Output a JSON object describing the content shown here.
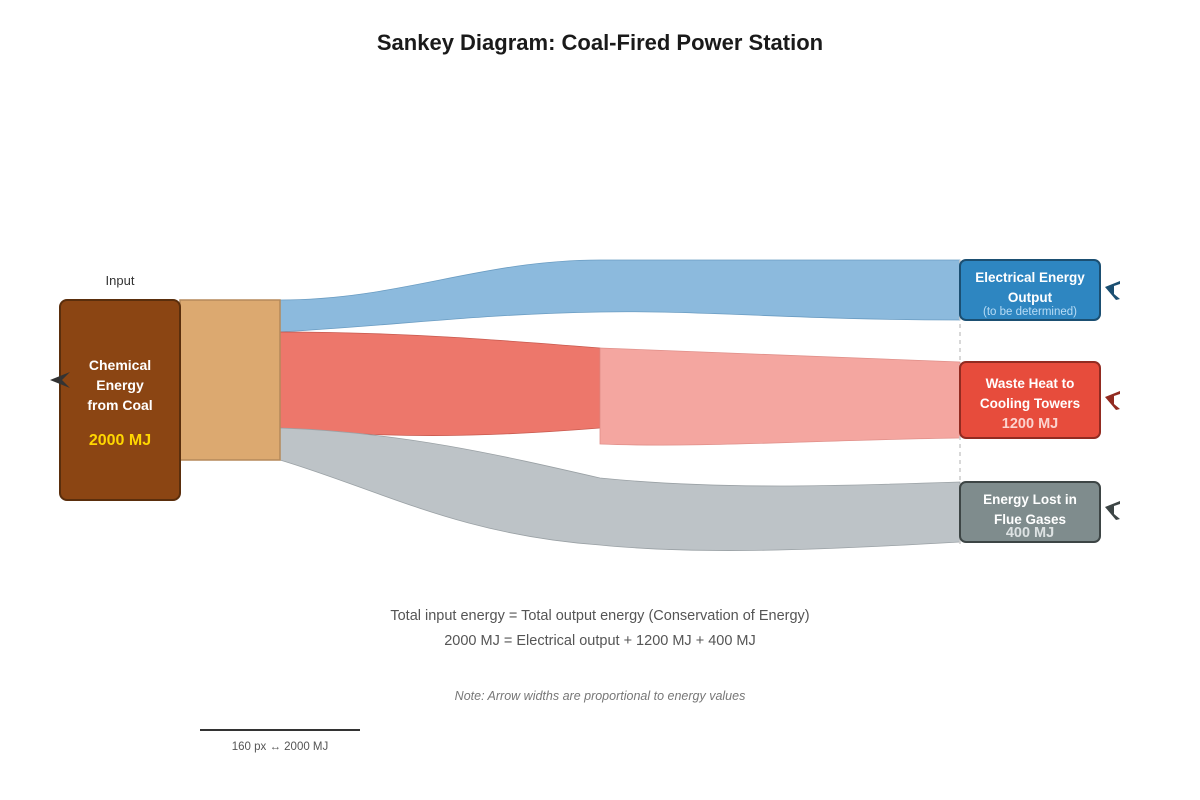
{
  "title": "Sankey Diagram: Coal-Fired Power Station",
  "input_caption": "Input",
  "source": {
    "line1": "Chemical",
    "line2": "Energy",
    "line3": "from Coal",
    "value": "2000 MJ",
    "color": "#8B4513",
    "value_color": "#FFD700"
  },
  "outputs": {
    "electrical": {
      "line1": "Electrical Energy",
      "line2": "Output",
      "sub": "(to be determined)",
      "color": "#2E86C1",
      "flow_color": "#7FB3D9"
    },
    "waste_heat": {
      "line1": "Waste Heat to",
      "line2": "Cooling Towers",
      "value": "1200 MJ",
      "color": "#E74C3C",
      "flow_color": "#EC7063"
    },
    "flue": {
      "line1": "Energy Lost in",
      "line2": "Flue Gases",
      "value": "400 MJ",
      "color": "#7F8C8D",
      "flow_color": "#BDC3C7"
    }
  },
  "equation": {
    "line1": "Total input energy = Total output energy (Conservation of Energy)",
    "line2": "2000 MJ = Electrical output + 1200 MJ + 400 MJ"
  },
  "note": "Note: Arrow widths are proportional to energy values",
  "scale_label": "160 px ↔ 2000 MJ"
}
